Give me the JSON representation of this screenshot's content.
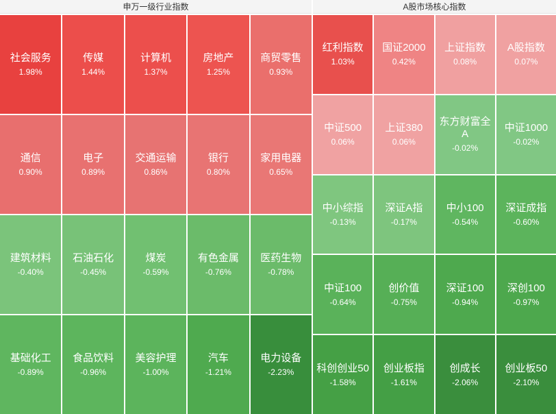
{
  "panels": [
    {
      "title": "申万一级行业指数",
      "cells": [
        {
          "name": "社会服务",
          "change": "1.98%",
          "color": "#e8413f"
        },
        {
          "name": "传媒",
          "change": "1.44%",
          "color": "#ec4e4b"
        },
        {
          "name": "计算机",
          "change": "1.37%",
          "color": "#ec4f4c"
        },
        {
          "name": "房地产",
          "change": "1.25%",
          "color": "#ed5450"
        },
        {
          "name": "商贸零售",
          "change": "0.93%",
          "color": "#ea6f6c"
        },
        {
          "name": "通信",
          "change": "0.90%",
          "color": "#e86f6e"
        },
        {
          "name": "电子",
          "change": "0.89%",
          "color": "#e87170"
        },
        {
          "name": "交通运输",
          "change": "0.86%",
          "color": "#e77372"
        },
        {
          "name": "银行",
          "change": "0.80%",
          "color": "#e87473"
        },
        {
          "name": "家用电器",
          "change": "0.65%",
          "color": "#e97775"
        },
        {
          "name": "建筑材料",
          "change": "-0.40%",
          "color": "#7bc47b"
        },
        {
          "name": "石油石化",
          "change": "-0.45%",
          "color": "#78c278"
        },
        {
          "name": "煤炭",
          "change": "-0.59%",
          "color": "#71c071"
        },
        {
          "name": "有色金属",
          "change": "-0.76%",
          "color": "#6bbb6a"
        },
        {
          "name": "医药生物",
          "change": "-0.78%",
          "color": "#6bbb6a"
        },
        {
          "name": "基础化工",
          "change": "-0.89%",
          "color": "#5fb65f"
        },
        {
          "name": "食品饮料",
          "change": "-0.96%",
          "color": "#5db55d"
        },
        {
          "name": "美容护理",
          "change": "-1.00%",
          "color": "#5cb45c"
        },
        {
          "name": "汽车",
          "change": "-1.21%",
          "color": "#4faa4f"
        },
        {
          "name": "电力设备",
          "change": "-2.23%",
          "color": "#388e3c"
        }
      ]
    },
    {
      "title": "A股市场核心指数",
      "cells": [
        {
          "name": "红利指数",
          "change": "1.03%",
          "color": "#e8504d"
        },
        {
          "name": "国证2000",
          "change": "0.42%",
          "color": "#ef8484"
        },
        {
          "name": "上证指数",
          "change": "0.08%",
          "color": "#f0a0a0"
        },
        {
          "name": "A股指数",
          "change": "0.07%",
          "color": "#f0a1a1"
        },
        {
          "name": "中证500",
          "change": "0.06%",
          "color": "#f0a2a2"
        },
        {
          "name": "上证380",
          "change": "0.06%",
          "color": "#f0a2a2"
        },
        {
          "name": "东方财富全A",
          "change": "-0.02%",
          "color": "#81c784"
        },
        {
          "name": "中证1000",
          "change": "-0.02%",
          "color": "#81c784"
        },
        {
          "name": "中小综指",
          "change": "-0.13%",
          "color": "#7fc67f"
        },
        {
          "name": "深证A指",
          "change": "-0.17%",
          "color": "#7ec57e"
        },
        {
          "name": "中小100",
          "change": "-0.54%",
          "color": "#5fb660"
        },
        {
          "name": "深证成指",
          "change": "-0.60%",
          "color": "#5cb45c"
        },
        {
          "name": "中证100",
          "change": "-0.64%",
          "color": "#5ab25a"
        },
        {
          "name": "创价值",
          "change": "-0.75%",
          "color": "#56af56"
        },
        {
          "name": "深证100",
          "change": "-0.94%",
          "color": "#4ea94e"
        },
        {
          "name": "深创100",
          "change": "-0.97%",
          "color": "#4da84d"
        },
        {
          "name": "科创创业50",
          "change": "-1.58%",
          "color": "#45a045"
        },
        {
          "name": "创业板指",
          "change": "-1.61%",
          "color": "#449f45"
        },
        {
          "name": "创成长",
          "change": "-2.06%",
          "color": "#3a8e3d"
        },
        {
          "name": "创业板50",
          "change": "-2.10%",
          "color": "#3a8e3d"
        }
      ]
    }
  ]
}
